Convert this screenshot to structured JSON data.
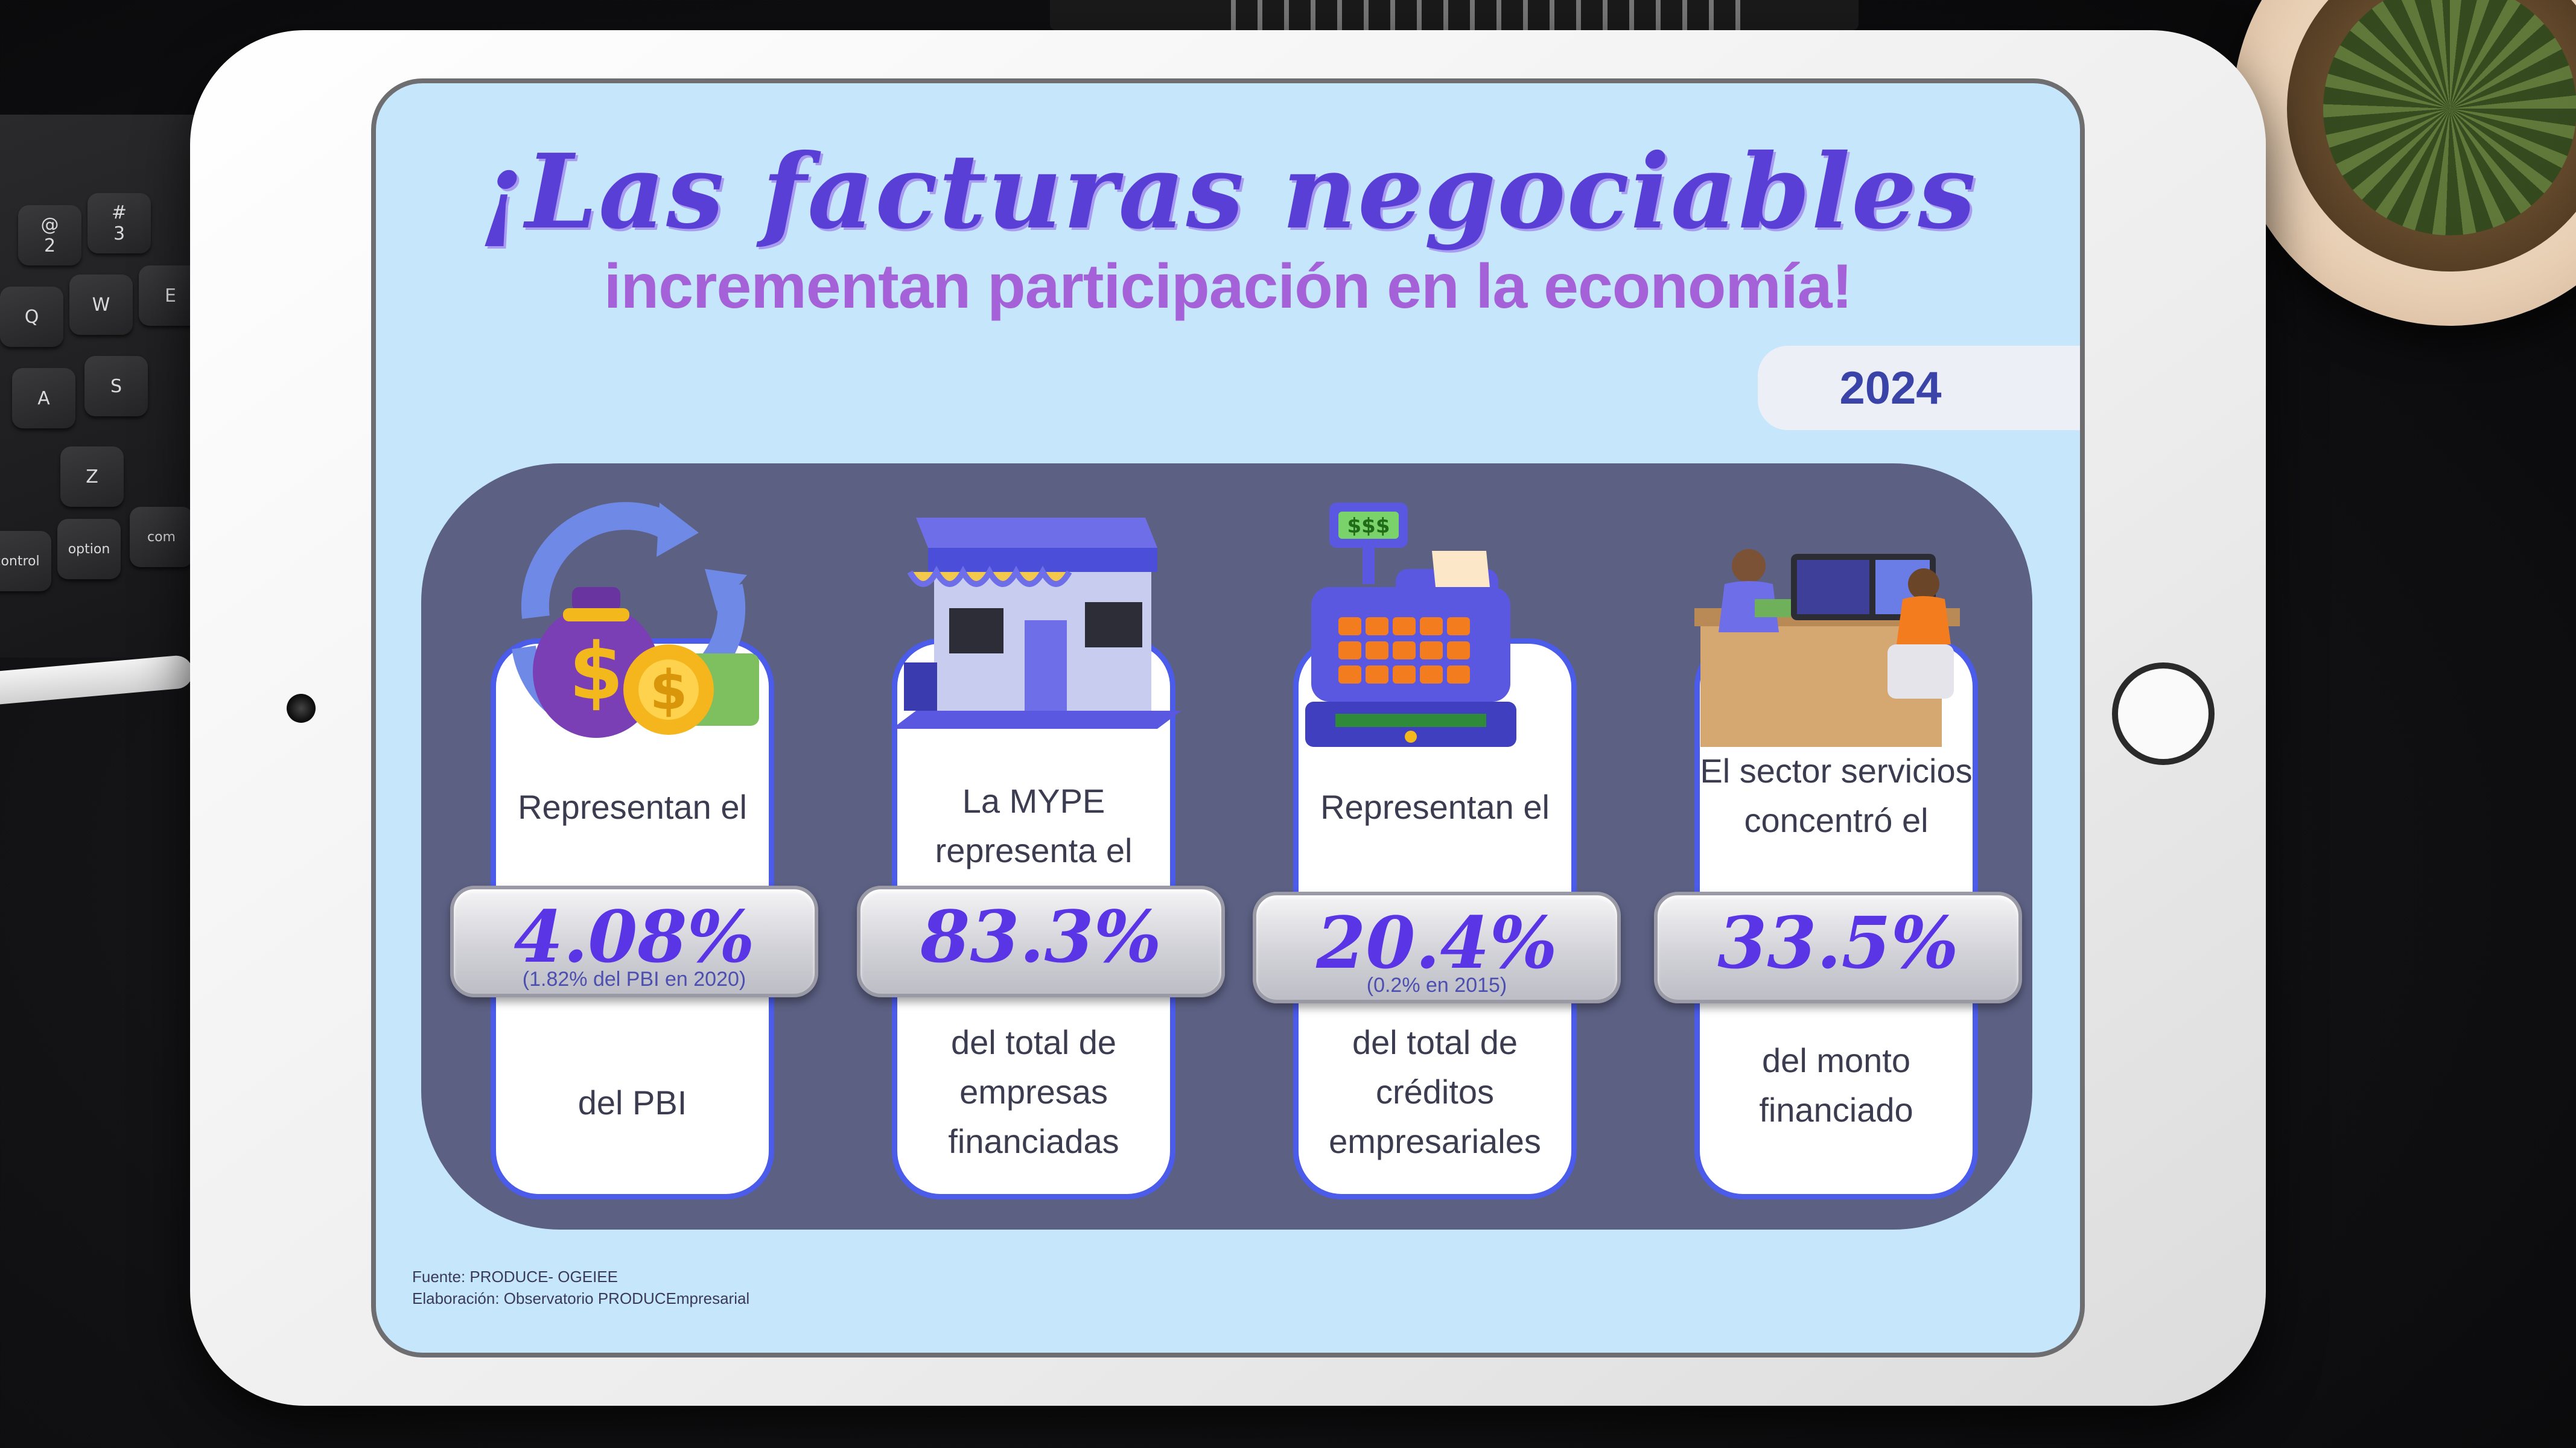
{
  "keyboard": {
    "keys": [
      {
        "label": "@\n2"
      },
      {
        "label": "#\n3"
      },
      {
        "label": "Q"
      },
      {
        "label": "W"
      },
      {
        "label": "E"
      },
      {
        "label": "A"
      },
      {
        "label": "S"
      },
      {
        "label": "Z"
      },
      {
        "label": "control"
      },
      {
        "label": "option"
      },
      {
        "label": "com"
      }
    ]
  },
  "infographic": {
    "title_line1": "¡Las facturas negociables",
    "title_line2": "incrementan participación en la economía!",
    "year": "2024",
    "cards": [
      {
        "icon": "money-bag-icon",
        "top_text": "Representan el",
        "value": "4.08%",
        "note": "(1.82% del PBI en 2020)",
        "bottom_text": "del PBI"
      },
      {
        "icon": "storefront-icon",
        "top_text": "La MYPE representa el",
        "value": "83.3%",
        "note": "",
        "bottom_text": "del total de empresas financiadas"
      },
      {
        "icon": "cash-register-icon",
        "top_text": "Representan el",
        "value": "20.4%",
        "note": "(0.2% en 2015)",
        "bottom_text": "del total de créditos empresariales"
      },
      {
        "icon": "office-workers-icon",
        "top_text": "El sector servicios concentró el",
        "value": "33.5%",
        "note": "",
        "bottom_text": "del monto financiado"
      }
    ],
    "footer": {
      "source": "Fuente: PRODUCE- OGEIEE",
      "credit": "Elaboración: Observatorio PRODUCEmpresarial"
    }
  },
  "colors": {
    "screen_bg": "#c6e6fc",
    "panel": "#5c6083",
    "card_border": "#4b5bea",
    "title_script": "#5a3fd6",
    "title_sub": "#a461d8",
    "stat_value": "#5a35e6"
  }
}
